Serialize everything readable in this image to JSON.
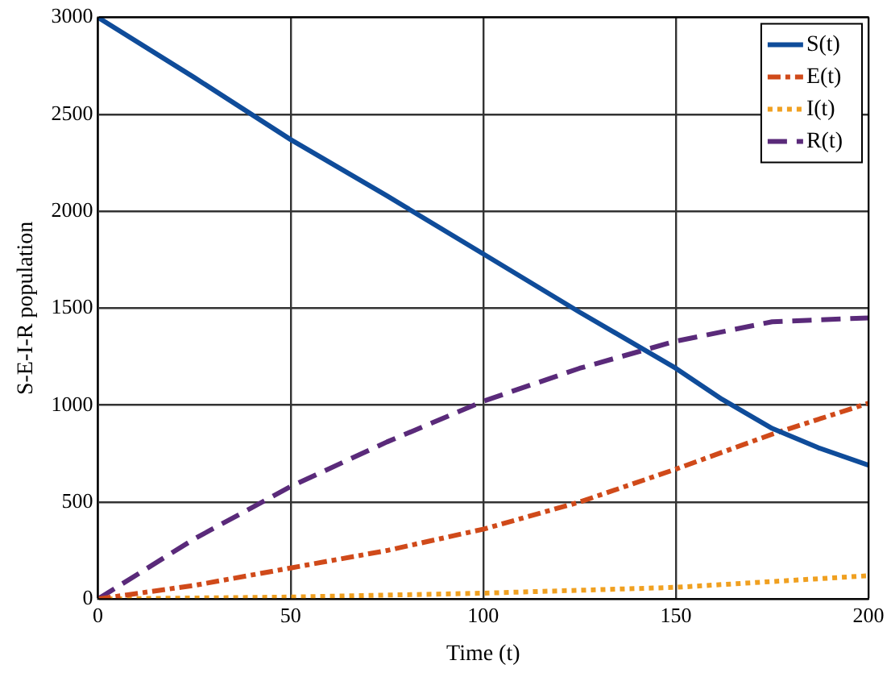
{
  "chart_data": {
    "type": "line",
    "xlabel": "Time (t)",
    "ylabel": "S-E-I-R population",
    "x": [
      0,
      25,
      50,
      75,
      100,
      125,
      150,
      175,
      200
    ],
    "series": [
      {
        "name": "S(t)",
        "color": "#0f4c9a",
        "line_style": "solid",
        "x": [
          0,
          25,
          50,
          75,
          100,
          125,
          150,
          162,
          175,
          187,
          200
        ],
        "values": [
          3000,
          2690,
          2370,
          2080,
          1780,
          1480,
          1190,
          1030,
          880,
          780,
          690
        ]
      },
      {
        "name": "E(t)",
        "color": "#d04a1a",
        "line_style": "dashdot",
        "values": [
          0,
          70,
          160,
          250,
          360,
          500,
          670,
          850,
          1010
        ]
      },
      {
        "name": "I(t)",
        "color": "#f0a020",
        "line_style": "dotted",
        "x": [
          0,
          50,
          100,
          150,
          200
        ],
        "values": [
          0,
          10,
          30,
          60,
          120
        ]
      },
      {
        "name": "R(t)",
        "color": "#5a2a7a",
        "line_style": "dashed",
        "values": [
          0,
          310,
          580,
          810,
          1020,
          1190,
          1330,
          1430,
          1450
        ]
      }
    ],
    "xlim": [
      0,
      200
    ],
    "xticks": [
      0,
      50,
      100,
      150,
      200
    ],
    "ylim": [
      0,
      3000
    ],
    "yticks": [
      0,
      500,
      1000,
      1500,
      2000,
      2500,
      3000
    ],
    "grid": true,
    "legend": "top right",
    "marker": "none"
  }
}
